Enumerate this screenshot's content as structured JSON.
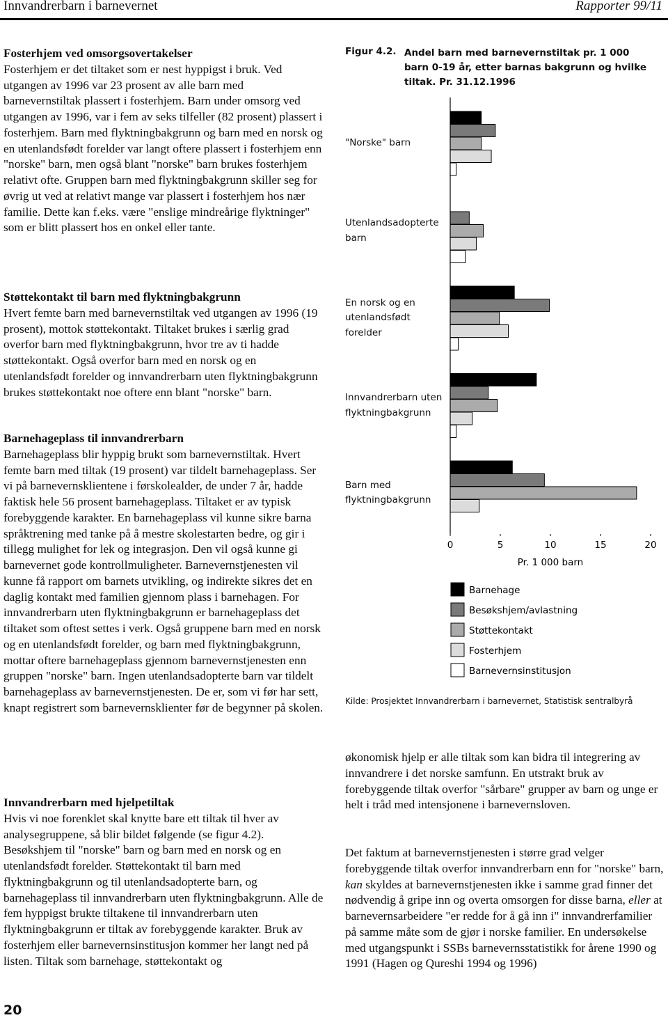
{
  "header": {
    "left": "Innvandrerbarn i barnevernet",
    "right": "Rapporter 99/11"
  },
  "left_column": [
    {
      "heading": "Fosterhjem ved omsorgsovertakelser",
      "text": "Fosterhjem er det tiltaket som er nest hyppigst i bruk. Ved utgangen av 1996 var 23 prosent av alle barn med barnevernstiltak plassert i fosterhjem. Barn under omsorg ved utgangen av 1996, var i fem av seks tilfeller (82 prosent) plassert i fosterhjem. Barn med flyktningbakgrunn og barn med en norsk og en utenlandsfødt forelder var langt oftere plassert i fosterhjem enn \"norske\" barn, men også blant \"norske\" barn brukes fosterhjem relativt ofte. Gruppen barn med flyktningbakgrunn skiller seg for øvrig ut ved at relativt mange var plassert i fosterhjem hos nær familie. Dette kan f.eks. være \"enslige mindreårige flyktninger\" som er blitt plassert hos en onkel eller tante."
    },
    {
      "heading": "Støttekontakt til barn med flyktningbakgrunn",
      "text": "Hvert femte barn med barnevernstiltak ved utgangen av 1996 (19 prosent), mottok støttekontakt. Tiltaket brukes i særlig grad overfor barn med flyktningbakgrunn, hvor tre av ti hadde støttekontakt. Også overfor barn med en norsk og en utenlandsfødt forelder og innvandrerbarn uten flyktningbakgrunn brukes støttekontakt noe oftere enn blant \"norske\" barn."
    },
    {
      "heading": "Barnehageplass til innvandrerbarn",
      "text": "Barnehageplass blir hyppig brukt som barnevernstiltak. Hvert femte barn med tiltak (19 prosent) var tildelt barnehageplass. Ser vi på barnevernsklientene i førskolealder, de under 7 år, hadde faktisk hele 56 prosent barnehageplass. Tiltaket er av typisk forebyggende karakter. En barnehageplass vil kunne sikre barna språktrening med tanke på å mestre skolestarten bedre, og gir i tillegg mulighet for lek og integrasjon. Den vil også kunne gi barnevernet gode kontrollmuligheter. Barnevernstjenesten vil kunne få rapport om barnets utvikling, og indirekte sikres det en daglig kontakt med familien gjennom plass i barnehagen. For innvandrerbarn uten flyktningbakgrunn er barnehageplass det tiltaket som oftest settes i verk. Også gruppene barn med en norsk og en utenlandsfødt forelder, og barn med flyktningbakgrunn, mottar oftere barnehageplass gjennom barnevernstjenesten enn gruppen \"norske\" barn. Ingen utenlandsadopterte barn var tildelt barnehageplass av barnevernstjenesten. De er, som vi før har sett, knapt registrert som barnevernsklienter før de begynner på skolen."
    },
    {
      "heading": "Innvandrerbarn med hjelpetiltak",
      "text": "Hvis vi noe forenklet skal knytte bare ett tiltak til hver av analysegruppene, så blir bildet følgende (se figur 4.2). Besøkshjem til \"norske\" barn og barn med en norsk og en utenlandsfødt forelder. Støttekontakt til barn med flyktningbakgrunn og til utenlandsadopterte barn, og barnehageplass til innvandrerbarn uten flyktningbakgrunn. Alle de fem hyppigst brukte tiltakene til innvandrerbarn uten flyktningbakgrunn er tiltak av forebyggende karakter. Bruk av fosterhjem eller barnevernsinstitusjon kommer her langt ned på listen. Tiltak som barnehage, støttekontakt og"
    }
  ],
  "chart_data": {
    "type": "bar",
    "orientation": "horizontal",
    "figure_label": "Figur 4.2.",
    "title": "Andel barn med barnevernstiltak pr. 1 000 barn 0-19 år, etter barnas bakgrunn og hvilke tiltak. Pr. 31.12.1996",
    "categories": [
      "\"Norske\" barn",
      "Utenlandsadopterte barn",
      "En norsk og en utenlandsfødt forelder",
      "Innvandrerbarn uten flyktningbakgrunn",
      "Barn med flyktningbakgrunn"
    ],
    "series": [
      {
        "name": "Barnehage",
        "color": "#000000",
        "values": [
          3.1,
          0,
          6.4,
          8.6,
          6.2
        ]
      },
      {
        "name": "Besøkshjem/avlastning",
        "color": "#7a7a7a",
        "values": [
          4.5,
          1.9,
          9.9,
          3.8,
          9.4
        ]
      },
      {
        "name": "Støttekontakt",
        "color": "#ababab",
        "values": [
          3.1,
          3.3,
          4.9,
          4.7,
          18.6
        ]
      },
      {
        "name": "Fosterhjem",
        "color": "#dcdcdc",
        "values": [
          4.1,
          2.6,
          5.8,
          2.2,
          2.9
        ]
      },
      {
        "name": "Barnevernsinstitusjon",
        "color": "#ffffff",
        "values": [
          0.6,
          1.5,
          0.8,
          0.6,
          0
        ]
      }
    ],
    "xlim": [
      0,
      20
    ],
    "xticks": [
      0,
      5,
      10,
      15,
      20
    ],
    "x_label": "Pr. 1 000 barn",
    "source": "Kilde: Prosjektet Innvandrerbarn i barnevernet, Statistisk sentralbyrå"
  },
  "right_column": [
    {
      "parts": [
        "økonomisk hjelp er alle tiltak som kan bidra til integrering av innvandrere i det norske samfunn. En utstrakt bruk av forebyggende tiltak overfor \"sårbare\" grupper av barn og unge er helt i tråd med intensjonene i barnevernsloven."
      ]
    },
    {
      "parts": [
        "Det faktum at barnevernstjenesten i større grad velger forebyggende tiltak overfor innvandrerbarn enn for \"norske\" barn, ",
        "kan",
        " skyldes at barnevernstjenesten ikke i samme grad finner det nødvendig å gripe inn og overta omsorgen for disse barna, ",
        "eller",
        " at barnevernsarbeidere \"er redde for å gå inn i\" innvandrerfamilier på samme måte som de gjør i norske familier. En undersøkelse med utgangspunkt i SSBs barnevernsstatistikk for årene 1990 og 1991 (Hagen og Qureshi 1994 og 1996)"
      ]
    }
  ],
  "page_number": "20"
}
